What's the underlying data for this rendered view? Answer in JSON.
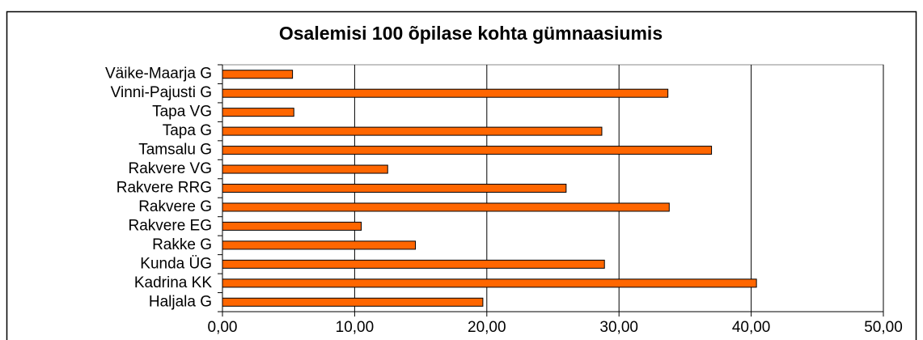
{
  "chart_data": {
    "type": "hbar",
    "title": "Osalemisi 100 õpilase kohta gümnaasiumis",
    "categories": [
      "Väike-Maarja G",
      "Vinni-Pajusti G",
      "Tapa VG",
      "Tapa G",
      "Tamsalu G",
      "Rakvere VG",
      "Rakvere RRG",
      "Rakvere G",
      "Rakvere EG",
      "Rakke G",
      "Kunda ÜG",
      "Kadrina KK",
      "Haljala G"
    ],
    "values": [
      5.3,
      33.7,
      5.4,
      28.7,
      37.0,
      12.5,
      26.0,
      33.8,
      10.5,
      14.6,
      28.9,
      40.4,
      19.7
    ],
    "color": "#ff6600",
    "xlim": [
      0,
      50
    ],
    "xticks": [
      {
        "value": 0,
        "label": "0,00"
      },
      {
        "value": 10,
        "label": "10,00"
      },
      {
        "value": 20,
        "label": "20,00"
      },
      {
        "value": 30,
        "label": "30,00"
      },
      {
        "value": 40,
        "label": "40,00"
      },
      {
        "value": 50,
        "label": "50,00"
      }
    ],
    "grid": true
  }
}
